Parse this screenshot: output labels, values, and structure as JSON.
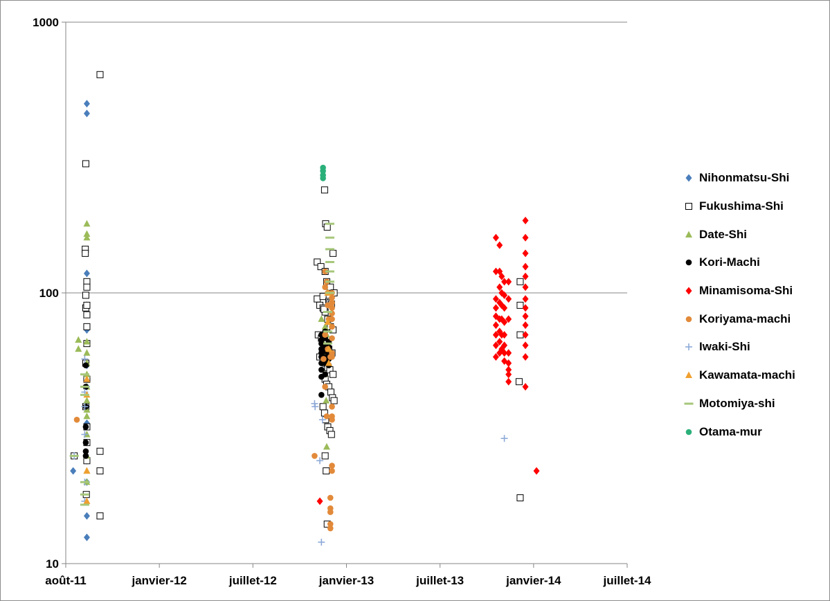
{
  "chart_data": {
    "type": "scatter",
    "title": "",
    "xlabel": "",
    "ylabel": "",
    "yscale": "log",
    "ylim": [
      10,
      1000
    ],
    "y_ticks": [
      "10",
      "100",
      "1000"
    ],
    "x_ticks": [
      "août-11",
      "janvier-12",
      "juillet-12",
      "janvier-13",
      "juillet-13",
      "janvier-14",
      "juillet-14"
    ],
    "xlim": [
      "2011-08-01",
      "2014-07-01"
    ],
    "grid": "horizontal major lines",
    "legend_position": "right",
    "series": [
      {
        "name": "Nihonmatsu-Shi",
        "marker": "diamond",
        "color": "#4a7ebb",
        "x": [
          "2011-09-10",
          "2011-09-10",
          "2011-09-10",
          "2011-09-10",
          "2011-09-10",
          "2011-09-10",
          "2011-09-10",
          "2011-09-10",
          "2011-09-10",
          "2011-09-10",
          "2011-09-10",
          "2011-09-10",
          "2011-09-10",
          "2011-08-15",
          "2011-09-10",
          "2011-09-10"
        ],
        "y": [
          500,
          460,
          118,
          108,
          90,
          73,
          54,
          45,
          38,
          33,
          28,
          24,
          20,
          22,
          15,
          12.5
        ]
      },
      {
        "name": "Fukushima-Shi",
        "marker": "square-open",
        "color": "#000000",
        "x": [
          "2011-10-05",
          "2011-09-08",
          "2011-09-07",
          "2011-09-07",
          "2011-09-08",
          "2011-09-10",
          "2011-09-08",
          "2011-09-10",
          "2011-09-10",
          "2011-09-10",
          "2011-09-10",
          "2011-09-10",
          "2011-09-08",
          "2011-09-10",
          "2011-09-08",
          "2011-09-10",
          "2011-10-05",
          "2011-10-05",
          "2011-10-05",
          "2011-09-09",
          "2011-09-10",
          "2011-09-10",
          "2011-08-17",
          "2012-11-20",
          "2012-11-25",
          "2012-12-01",
          "2012-12-05",
          "2012-12-10",
          "2012-12-15",
          "2012-12-20",
          "2012-11-22",
          "2012-11-28",
          "2012-12-03",
          "2012-12-08",
          "2012-12-12",
          "2012-12-18",
          "2012-11-25",
          "2012-12-01",
          "2012-12-06",
          "2012-12-10",
          "2012-12-14",
          "2012-12-20",
          "2012-12-05",
          "2012-12-08",
          "2012-12-12",
          "2012-12-16",
          "2012-12-19",
          "2012-12-22",
          "2012-12-01",
          "2012-12-04",
          "2012-12-06",
          "2012-12-10",
          "2012-12-14",
          "2012-12-17",
          "2012-12-20",
          "2012-11-20",
          "2012-11-27",
          "2012-12-05",
          "2012-12-08",
          "2012-12-15",
          "2012-12-22",
          "2012-12-01",
          "2012-12-04",
          "2012-12-06",
          "2012-12-09",
          "2012-12-12",
          "2012-12-14",
          "2012-12-17",
          "2012-12-03",
          "2012-12-05",
          "2012-12-07",
          "2012-12-09",
          "2013-12-10",
          "2013-12-10",
          "2013-12-10",
          "2013-12-10",
          "2013-12-08"
        ],
        "y": [
          640,
          300,
          145,
          140,
          98,
          110,
          88,
          105,
          90,
          83,
          75,
          65,
          55,
          48,
          38,
          28,
          26,
          22,
          15,
          18,
          32,
          24,
          25,
          95,
          90,
          88,
          85,
          80,
          75,
          73,
          70,
          68,
          66,
          65,
          62,
          60,
          58,
          56,
          55,
          53,
          52,
          50,
          48,
          46,
          45,
          43,
          41,
          40,
          38,
          36,
          34,
          32,
          31,
          30,
          140,
          130,
          125,
          120,
          110,
          105,
          100,
          97,
          240,
          180,
          175,
          93,
          92,
          91,
          87,
          25,
          22,
          14,
          17.5,
          110,
          90,
          70,
          47
        ]
      },
      {
        "name": "Date-Shi",
        "marker": "triangle",
        "color": "#9bbb59",
        "x": [
          "2011-09-10",
          "2011-09-10",
          "2011-09-10",
          "2011-08-25",
          "2011-08-25",
          "2011-09-10",
          "2011-09-10",
          "2011-09-10",
          "2011-09-10",
          "2011-09-10",
          "2011-09-10",
          "2011-09-10",
          "2011-09-10",
          "2011-09-10",
          "2011-09-10",
          "2011-09-10",
          "2011-09-10",
          "2012-11-28",
          "2012-12-05",
          "2012-12-08",
          "2012-12-02",
          "2012-12-06",
          "2012-12-10",
          "2012-12-03",
          "2012-12-07",
          "2012-12-08"
        ],
        "y": [
          180,
          165,
          160,
          67,
          62,
          66,
          60,
          55,
          50,
          45,
          40,
          37,
          35,
          30,
          25,
          22,
          20,
          80,
          75,
          70,
          65,
          60,
          55,
          50,
          40,
          27
        ]
      },
      {
        "name": "Kori-Machi",
        "marker": "circle",
        "color": "#000000",
        "x": [
          "2011-09-08",
          "2011-09-08",
          "2011-09-08",
          "2011-09-08",
          "2011-09-08",
          "2011-09-08",
          "2011-09-08",
          "2012-11-28",
          "2012-11-28",
          "2012-11-28",
          "2012-11-28",
          "2012-11-28",
          "2012-11-28",
          "2012-11-28",
          "2012-11-28",
          "2012-11-28",
          "2012-11-28",
          "2012-12-05",
          "2012-12-05",
          "2012-12-05",
          "2012-12-05",
          "2012-12-05",
          "2012-12-05",
          "2012-12-05",
          "2012-12-12",
          "2012-12-12",
          "2012-12-12",
          "2012-12-12",
          "2012-12-12"
        ],
        "y": [
          54,
          45,
          38,
          32,
          28,
          26,
          25,
          70,
          67,
          65,
          62,
          60,
          58,
          55,
          52,
          49,
          42,
          72,
          68,
          64,
          61,
          58,
          55,
          50,
          66,
          63,
          60,
          57,
          54
        ]
      },
      {
        "name": "Minamisoma-Shi",
        "marker": "diamond",
        "color": "#ff0000",
        "x": [
          "2012-11-25",
          "2013-10-25",
          "2013-10-25",
          "2013-10-25",
          "2013-10-25",
          "2013-10-25",
          "2013-10-25",
          "2013-10-25",
          "2013-10-25",
          "2013-10-25",
          "2013-11-01",
          "2013-11-01",
          "2013-11-01",
          "2013-11-01",
          "2013-11-01",
          "2013-11-01",
          "2013-11-01",
          "2013-11-01",
          "2013-11-05",
          "2013-11-05",
          "2013-11-05",
          "2013-11-05",
          "2013-11-05",
          "2013-11-05",
          "2013-11-10",
          "2013-11-10",
          "2013-11-10",
          "2013-11-10",
          "2013-11-10",
          "2013-11-10",
          "2013-11-10",
          "2013-11-10",
          "2013-11-18",
          "2013-11-18",
          "2013-11-18",
          "2013-11-18",
          "2013-11-18",
          "2013-11-18",
          "2013-11-18",
          "2013-11-18",
          "2013-12-20",
          "2013-12-20",
          "2013-12-20",
          "2013-12-20",
          "2013-12-20",
          "2013-12-20",
          "2013-12-20",
          "2013-12-20",
          "2013-12-20",
          "2013-12-20",
          "2013-12-20",
          "2013-12-20",
          "2013-12-20",
          "2013-12-20",
          "2014-01-10"
        ],
        "y": [
          17,
          160,
          120,
          95,
          88,
          82,
          76,
          70,
          64,
          58,
          150,
          120,
          105,
          92,
          80,
          72,
          66,
          60,
          115,
          100,
          90,
          80,
          70,
          62,
          110,
          98,
          88,
          78,
          70,
          64,
          60,
          56,
          60,
          55,
          52,
          50,
          47,
          110,
          95,
          80,
          185,
          160,
          140,
          125,
          115,
          105,
          95,
          88,
          82,
          76,
          70,
          64,
          58,
          45,
          22
        ]
      },
      {
        "name": "Koriyama-machi",
        "marker": "circle",
        "color": "#e28a3a",
        "x": [
          "2011-08-22",
          "2012-11-15",
          "2012-12-02",
          "2012-12-05",
          "2012-12-08",
          "2012-12-05",
          "2012-12-08",
          "2012-12-10",
          "2012-12-05",
          "2012-12-10",
          "2012-12-12",
          "2012-12-05",
          "2012-12-10",
          "2012-12-15",
          "2012-12-18",
          "2012-12-18",
          "2012-12-18",
          "2012-12-18",
          "2012-12-18",
          "2012-12-18",
          "2012-12-18",
          "2012-12-18",
          "2012-12-18",
          "2012-12-18",
          "2012-12-18",
          "2012-12-18",
          "2012-12-18",
          "2012-12-18",
          "2012-12-18",
          "2012-12-15",
          "2012-12-15",
          "2012-12-15",
          "2012-12-15",
          "2012-12-15"
        ],
        "y": [
          34,
          25,
          57,
          45,
          35,
          120,
          110,
          100,
          105,
          90,
          80,
          70,
          62,
          58,
          100,
          96,
          92,
          88,
          84,
          80,
          75,
          68,
          60,
          58,
          38,
          35,
          34,
          23,
          22,
          17.5,
          16,
          15.5,
          14,
          13.5
        ]
      },
      {
        "name": "Iwaki-Shi",
        "marker": "plus",
        "color": "#8eaad8",
        "x": [
          "2011-08-17",
          "2011-09-06",
          "2011-09-06",
          "2011-09-06",
          "2011-09-06",
          "2011-09-06",
          "2011-09-06",
          "2012-11-15",
          "2012-11-16",
          "2012-11-25",
          "2012-11-30",
          "2012-11-28",
          "2013-11-10"
        ],
        "y": [
          25,
          57,
          43,
          38,
          30,
          20,
          17,
          39,
          38,
          24,
          34,
          12,
          29
        ]
      },
      {
        "name": "Kawamata-machi",
        "marker": "triangle",
        "color": "#f0a030",
        "x": [
          "2011-09-10",
          "2011-09-10",
          "2011-09-10",
          "2011-09-10",
          "2012-12-10",
          "2012-12-10",
          "2012-12-12",
          "2012-12-12"
        ],
        "y": [
          48,
          42,
          22,
          17,
          100,
          78,
          62,
          55
        ]
      },
      {
        "name": "Motomiya-shi",
        "marker": "dash",
        "color": "#a6c77a",
        "x": [
          "2011-08-17",
          "2011-09-06",
          "2011-09-06",
          "2011-09-06",
          "2011-09-06",
          "2011-09-06",
          "2011-09-06",
          "2012-12-14",
          "2012-12-14",
          "2012-12-14",
          "2012-12-14",
          "2012-12-14",
          "2012-12-14",
          "2012-12-14",
          "2012-12-10",
          "2012-12-10",
          "2012-12-10"
        ],
        "y": [
          25,
          50,
          45,
          42,
          20,
          18,
          16.5,
          180,
          160,
          145,
          130,
          120,
          110,
          100,
          85,
          72,
          65
        ]
      },
      {
        "name": "Otama-mur",
        "marker": "circle",
        "color": "#2bb07a",
        "x": [
          "2012-12-01",
          "2012-12-01",
          "2012-12-01",
          "2012-12-01"
        ],
        "y": [
          290,
          282,
          272,
          265
        ]
      }
    ]
  }
}
